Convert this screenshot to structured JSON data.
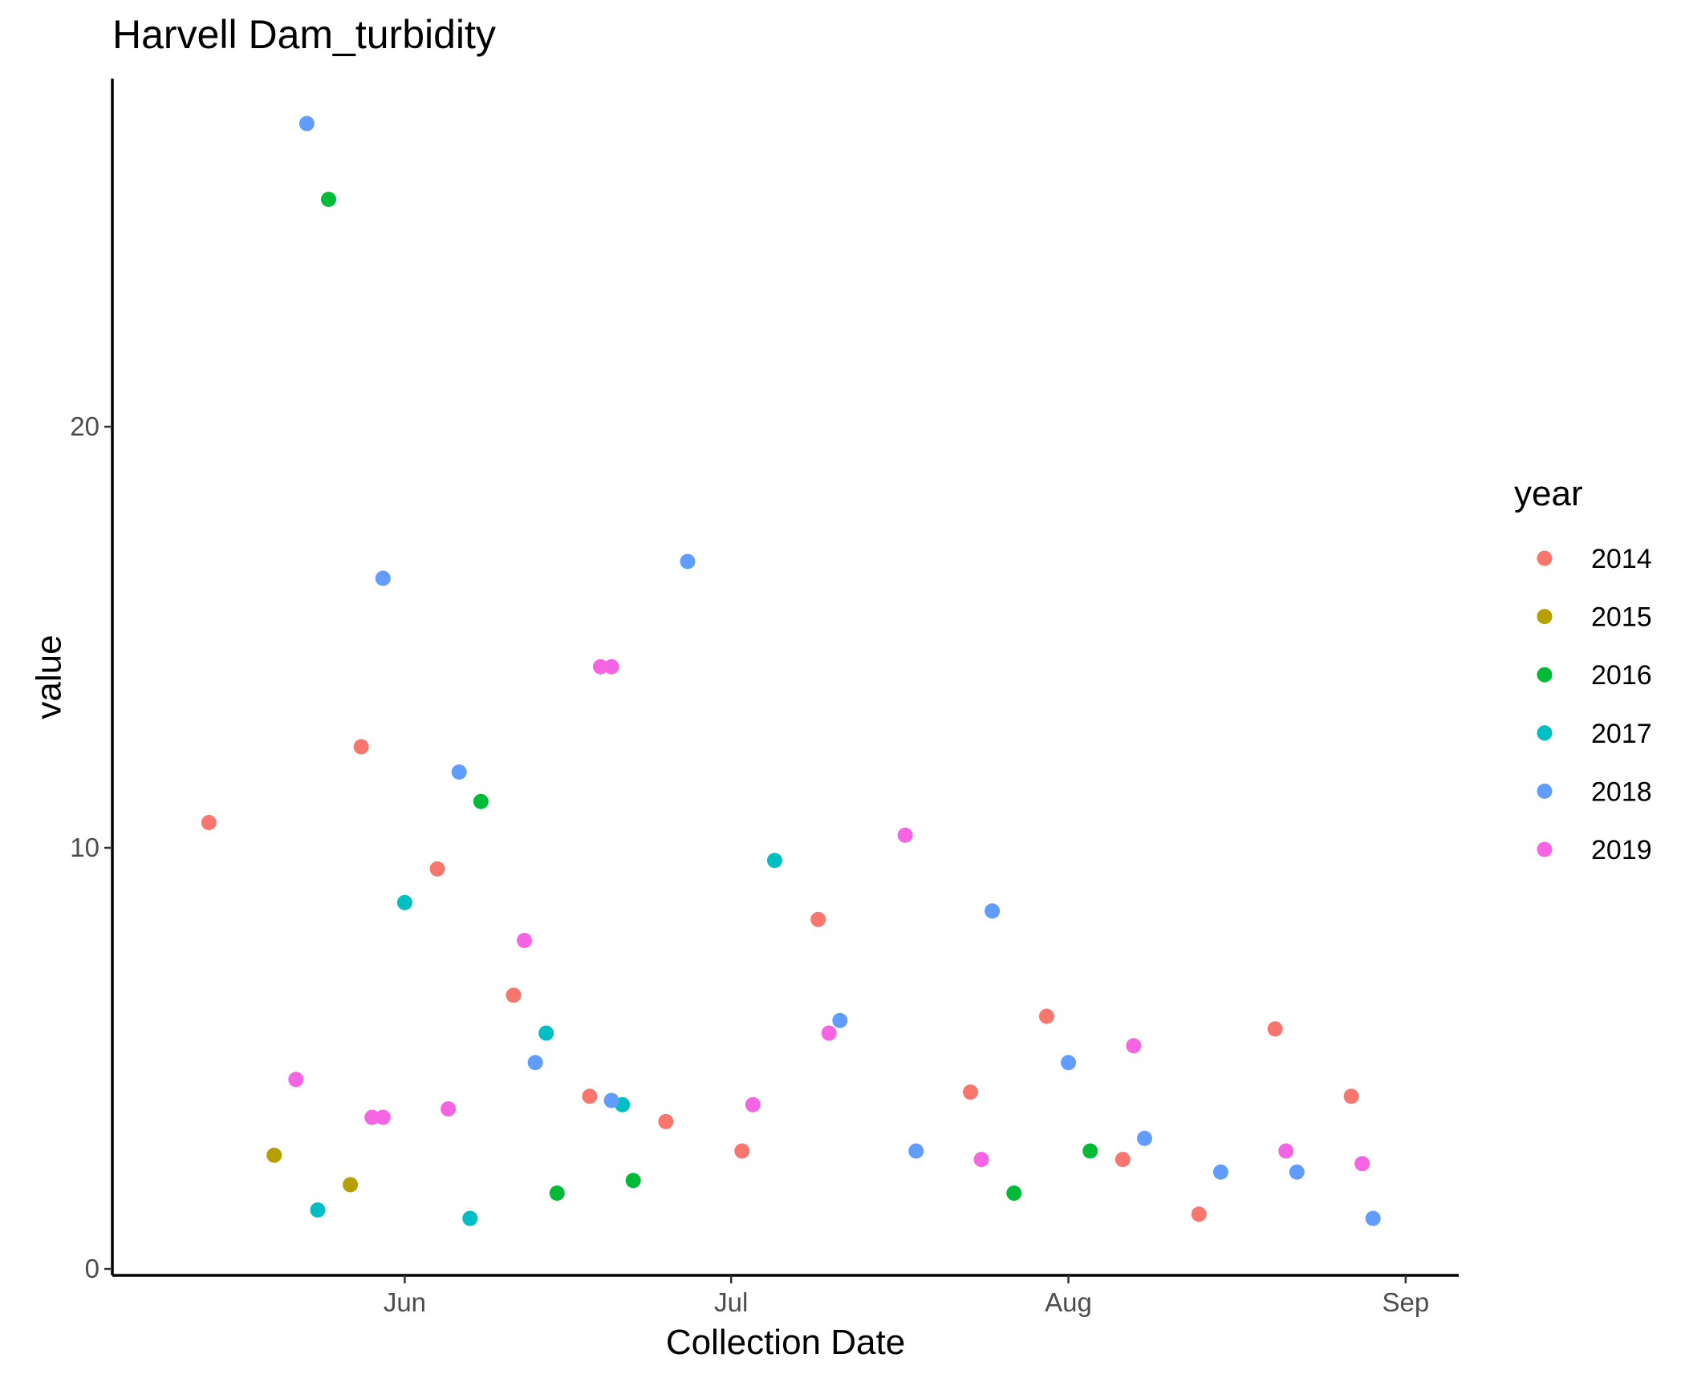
{
  "chart_data": {
    "type": "scatter",
    "title": "Harvell Dam_turbidity",
    "xlabel": "Collection Date",
    "ylabel": "value",
    "x_axis": {
      "type": "date",
      "range": [
        "2000-05-08",
        "2000-09-03"
      ],
      "ticks": [
        {
          "value": "2000-06-01",
          "label": "Jun"
        },
        {
          "value": "2000-07-01",
          "label": "Jul"
        },
        {
          "value": "2000-08-01",
          "label": "Aug"
        },
        {
          "value": "2000-09-01",
          "label": "Sep"
        }
      ]
    },
    "y_axis": {
      "range": [
        0,
        28
      ],
      "ticks": [
        0,
        10,
        20
      ]
    },
    "grid": false,
    "legend": {
      "title": "year",
      "position": "right"
    },
    "series": [
      {
        "name": "2014",
        "color": "#F8766D",
        "points": [
          {
            "x": "2000-05-14",
            "y": 10.6
          },
          {
            "x": "2000-05-28",
            "y": 12.4
          },
          {
            "x": "2000-06-04",
            "y": 9.5
          },
          {
            "x": "2000-06-11",
            "y": 6.5
          },
          {
            "x": "2000-06-18",
            "y": 4.1
          },
          {
            "x": "2000-06-25",
            "y": 3.5
          },
          {
            "x": "2000-07-02",
            "y": 2.8
          },
          {
            "x": "2000-07-09",
            "y": 8.3
          },
          {
            "x": "2000-07-23",
            "y": 4.2
          },
          {
            "x": "2000-07-30",
            "y": 6.0
          },
          {
            "x": "2000-08-06",
            "y": 2.6
          },
          {
            "x": "2000-08-13",
            "y": 1.3
          },
          {
            "x": "2000-08-20",
            "y": 5.7
          },
          {
            "x": "2000-08-27",
            "y": 4.1
          }
        ]
      },
      {
        "name": "2015",
        "color": "#B79F00",
        "points": [
          {
            "x": "2000-05-20",
            "y": 2.7
          },
          {
            "x": "2000-05-27",
            "y": 2.0
          }
        ]
      },
      {
        "name": "2016",
        "color": "#00BA38",
        "points": [
          {
            "x": "2000-05-25",
            "y": 25.4
          },
          {
            "x": "2000-06-08",
            "y": 11.1
          },
          {
            "x": "2000-06-15",
            "y": 1.8
          },
          {
            "x": "2000-06-22",
            "y": 2.1
          },
          {
            "x": "2000-07-27",
            "y": 1.8
          },
          {
            "x": "2000-08-03",
            "y": 2.8
          }
        ]
      },
      {
        "name": "2017",
        "color": "#00BFC4",
        "points": [
          {
            "x": "2000-05-24",
            "y": 1.4
          },
          {
            "x": "2000-06-01",
            "y": 8.7
          },
          {
            "x": "2000-06-07",
            "y": 1.2
          },
          {
            "x": "2000-06-14",
            "y": 5.6
          },
          {
            "x": "2000-06-21",
            "y": 3.9
          },
          {
            "x": "2000-07-05",
            "y": 9.7
          }
        ]
      },
      {
        "name": "2018",
        "color": "#619CFF",
        "points": [
          {
            "x": "2000-05-23",
            "y": 27.2
          },
          {
            "x": "2000-05-30",
            "y": 16.4
          },
          {
            "x": "2000-06-06",
            "y": 11.8
          },
          {
            "x": "2000-06-13",
            "y": 4.9
          },
          {
            "x": "2000-06-20",
            "y": 4.0
          },
          {
            "x": "2000-06-27",
            "y": 16.8
          },
          {
            "x": "2000-07-11",
            "y": 5.9
          },
          {
            "x": "2000-07-18",
            "y": 2.8
          },
          {
            "x": "2000-07-25",
            "y": 8.5
          },
          {
            "x": "2000-08-01",
            "y": 4.9
          },
          {
            "x": "2000-08-08",
            "y": 3.1
          },
          {
            "x": "2000-08-15",
            "y": 2.3
          },
          {
            "x": "2000-08-22",
            "y": 2.3
          },
          {
            "x": "2000-08-29",
            "y": 1.2
          }
        ]
      },
      {
        "name": "2019",
        "color": "#F564E3",
        "points": [
          {
            "x": "2000-05-22",
            "y": 4.5
          },
          {
            "x": "2000-05-29",
            "y": 3.6
          },
          {
            "x": "2000-05-30",
            "y": 3.6
          },
          {
            "x": "2000-06-05",
            "y": 3.8
          },
          {
            "x": "2000-06-12",
            "y": 7.8
          },
          {
            "x": "2000-06-19",
            "y": 14.3
          },
          {
            "x": "2000-06-20",
            "y": 14.3
          },
          {
            "x": "2000-07-03",
            "y": 3.9
          },
          {
            "x": "2000-07-10",
            "y": 5.6
          },
          {
            "x": "2000-07-17",
            "y": 10.3
          },
          {
            "x": "2000-07-24",
            "y": 2.6
          },
          {
            "x": "2000-08-07",
            "y": 5.3
          },
          {
            "x": "2000-08-21",
            "y": 2.8
          },
          {
            "x": "2000-08-28",
            "y": 2.5
          }
        ]
      }
    ]
  }
}
